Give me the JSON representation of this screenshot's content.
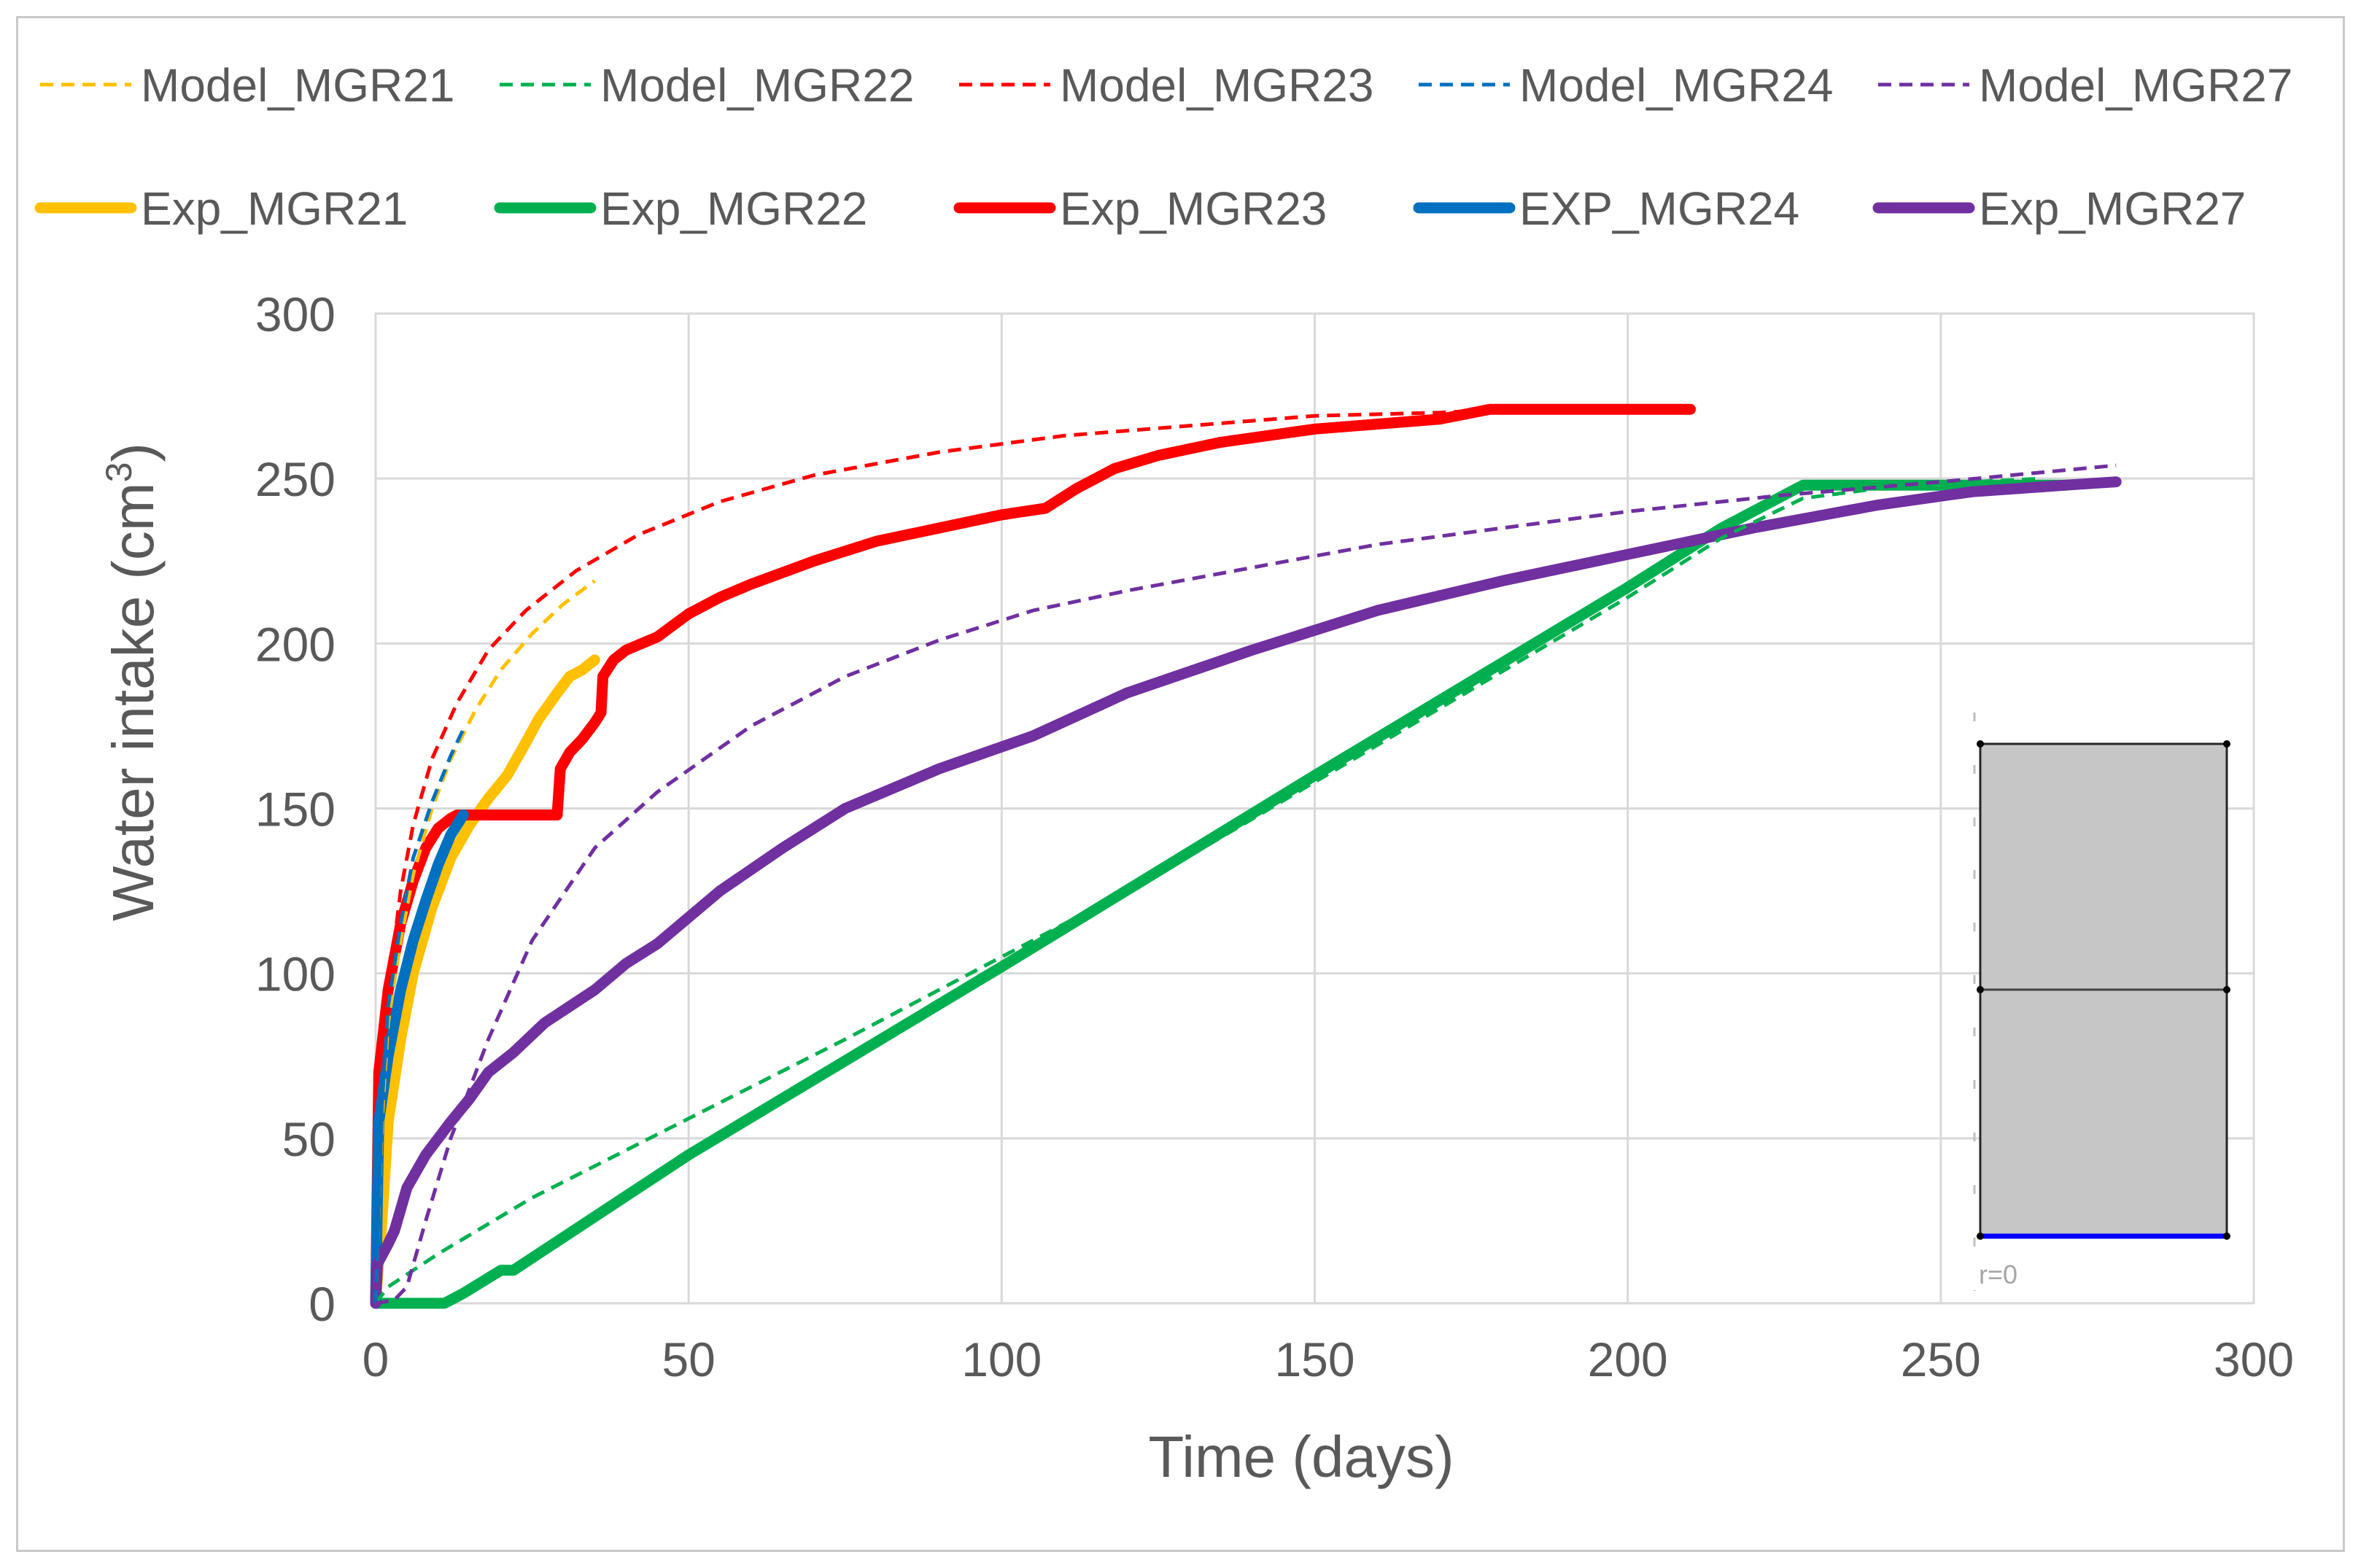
{
  "chart_data": {
    "type": "line",
    "title": "",
    "xlabel": "Time (days)",
    "ylabel": "Water intake (cm",
    "ylabel_superscript": "3",
    "ylabel_suffix": ")",
    "xlim": [
      0,
      300
    ],
    "ylim": [
      0,
      300
    ],
    "xticks": [
      "0",
      "50",
      "100",
      "150",
      "200",
      "250",
      "300"
    ],
    "yticks": [
      "0",
      "50",
      "100",
      "150",
      "200",
      "250",
      "300"
    ],
    "grid": true,
    "legend_position": "top",
    "series": [
      {
        "name": "Model_MGR21",
        "color": "#FFC000",
        "style": "dashed",
        "points": [
          [
            0,
            0
          ],
          [
            1,
            55
          ],
          [
            2,
            85
          ],
          [
            4,
            110
          ],
          [
            6,
            130
          ],
          [
            9,
            150
          ],
          [
            12,
            165
          ],
          [
            16,
            180
          ],
          [
            20,
            192
          ],
          [
            25,
            203
          ],
          [
            30,
            212
          ],
          [
            35,
            219
          ]
        ]
      },
      {
        "name": "Model_MGR22",
        "color": "#00B050",
        "style": "dashed",
        "points": [
          [
            0,
            0
          ],
          [
            2,
            5
          ],
          [
            10,
            15
          ],
          [
            25,
            32
          ],
          [
            50,
            56
          ],
          [
            75,
            80
          ],
          [
            100,
            105
          ],
          [
            125,
            130
          ],
          [
            150,
            158
          ],
          [
            175,
            186
          ],
          [
            200,
            214
          ],
          [
            215,
            232
          ],
          [
            228,
            244
          ],
          [
            240,
            247
          ],
          [
            255,
            249
          ],
          [
            266,
            250
          ]
        ]
      },
      {
        "name": "Model_MGR23",
        "color": "#FF0000",
        "style": "dashed",
        "points": [
          [
            0,
            0
          ],
          [
            1,
            60
          ],
          [
            2,
            95
          ],
          [
            4,
            125
          ],
          [
            6,
            145
          ],
          [
            9,
            165
          ],
          [
            13,
            182
          ],
          [
            18,
            198
          ],
          [
            24,
            210
          ],
          [
            32,
            222
          ],
          [
            42,
            233
          ],
          [
            55,
            243
          ],
          [
            70,
            251
          ],
          [
            90,
            258
          ],
          [
            110,
            263
          ],
          [
            130,
            266
          ],
          [
            150,
            269
          ],
          [
            170,
            270
          ],
          [
            180,
            271
          ]
        ]
      },
      {
        "name": "Model_MGR24",
        "color": "#0070C0",
        "style": "dashed",
        "points": [
          [
            0,
            0
          ],
          [
            1,
            60
          ],
          [
            2,
            90
          ],
          [
            4,
            115
          ],
          [
            6,
            135
          ],
          [
            9,
            152
          ],
          [
            12,
            166
          ],
          [
            14,
            174
          ]
        ]
      },
      {
        "name": "Model_MGR27",
        "color": "#7030A0",
        "style": "dashed",
        "points": [
          [
            0,
            0
          ],
          [
            3,
            1
          ],
          [
            5,
            5
          ],
          [
            8,
            25
          ],
          [
            12,
            50
          ],
          [
            18,
            80
          ],
          [
            25,
            110
          ],
          [
            35,
            138
          ],
          [
            45,
            155
          ],
          [
            60,
            175
          ],
          [
            75,
            190
          ],
          [
            90,
            201
          ],
          [
            105,
            210
          ],
          [
            120,
            216
          ],
          [
            140,
            223
          ],
          [
            160,
            230
          ],
          [
            180,
            235
          ],
          [
            200,
            240
          ],
          [
            225,
            245
          ],
          [
            250,
            249
          ],
          [
            278,
            254
          ]
        ]
      },
      {
        "name": "Exp_MGR21",
        "color": "#FFC000",
        "style": "solid",
        "points": [
          [
            0,
            0
          ],
          [
            1,
            25
          ],
          [
            2,
            55
          ],
          [
            4,
            80
          ],
          [
            6,
            100
          ],
          [
            9,
            120
          ],
          [
            12,
            135
          ],
          [
            15,
            145
          ],
          [
            18,
            153
          ],
          [
            21,
            160
          ],
          [
            24,
            170
          ],
          [
            26,
            177
          ],
          [
            29,
            185
          ],
          [
            31,
            190
          ],
          [
            33,
            192
          ],
          [
            35,
            195
          ]
        ]
      },
      {
        "name": "Exp_MGR22",
        "color": "#00B050",
        "style": "solid",
        "points": [
          [
            0,
            0
          ],
          [
            1,
            0
          ],
          [
            11,
            0
          ],
          [
            14,
            3
          ],
          [
            20,
            10
          ],
          [
            22,
            10
          ],
          [
            50,
            45
          ],
          [
            100,
            102
          ],
          [
            150,
            160
          ],
          [
            200,
            217
          ],
          [
            215,
            235
          ],
          [
            225,
            245
          ],
          [
            228,
            248
          ],
          [
            230,
            248
          ],
          [
            250,
            248
          ],
          [
            270,
            248
          ]
        ]
      },
      {
        "name": "Exp_MGR23",
        "color": "#FF0000",
        "style": "solid",
        "points": [
          [
            0,
            0
          ],
          [
            0.5,
            70
          ],
          [
            2,
            95
          ],
          [
            4,
            115
          ],
          [
            6,
            128
          ],
          [
            8,
            138
          ],
          [
            10,
            144
          ],
          [
            12,
            147
          ],
          [
            13,
            148
          ],
          [
            29,
            148
          ],
          [
            29.5,
            162
          ],
          [
            31,
            167
          ],
          [
            33,
            171
          ],
          [
            35,
            176
          ],
          [
            36,
            179
          ],
          [
            36.3,
            190
          ],
          [
            38,
            195
          ],
          [
            40,
            198
          ],
          [
            45,
            202
          ],
          [
            50,
            209
          ],
          [
            55,
            214
          ],
          [
            60,
            218
          ],
          [
            70,
            225
          ],
          [
            80,
            231
          ],
          [
            90,
            235
          ],
          [
            100,
            239
          ],
          [
            107,
            241
          ],
          [
            112,
            247
          ],
          [
            118,
            253
          ],
          [
            125,
            257
          ],
          [
            135,
            261
          ],
          [
            150,
            265
          ],
          [
            170,
            268
          ],
          [
            178,
            271
          ],
          [
            190,
            271
          ],
          [
            210,
            271
          ]
        ]
      },
      {
        "name": "EXP_MGR24",
        "color": "#0070C0",
        "style": "solid",
        "points": [
          [
            0,
            0
          ],
          [
            0.5,
            55
          ],
          [
            2,
            75
          ],
          [
            4,
            95
          ],
          [
            6,
            110
          ],
          [
            8,
            122
          ],
          [
            10,
            133
          ],
          [
            12,
            142
          ],
          [
            14,
            148
          ]
        ]
      },
      {
        "name": "Exp_MGR27",
        "color": "#7030A0",
        "style": "solid",
        "points": [
          [
            0,
            0
          ],
          [
            0.3,
            12
          ],
          [
            2,
            18
          ],
          [
            3,
            22
          ],
          [
            5,
            35
          ],
          [
            8,
            45
          ],
          [
            12,
            55
          ],
          [
            15,
            62
          ],
          [
            18,
            70
          ],
          [
            22,
            76
          ],
          [
            27,
            85
          ],
          [
            35,
            95
          ],
          [
            40,
            103
          ],
          [
            45,
            109
          ],
          [
            55,
            125
          ],
          [
            65,
            138
          ],
          [
            75,
            150
          ],
          [
            90,
            162
          ],
          [
            105,
            172
          ],
          [
            120,
            185
          ],
          [
            140,
            198
          ],
          [
            160,
            210
          ],
          [
            180,
            219
          ],
          [
            200,
            227
          ],
          [
            220,
            235
          ],
          [
            240,
            242
          ],
          [
            255,
            246
          ],
          [
            270,
            248
          ],
          [
            278,
            249
          ]
        ]
      }
    ],
    "inset": {
      "label": "r=0"
    }
  }
}
